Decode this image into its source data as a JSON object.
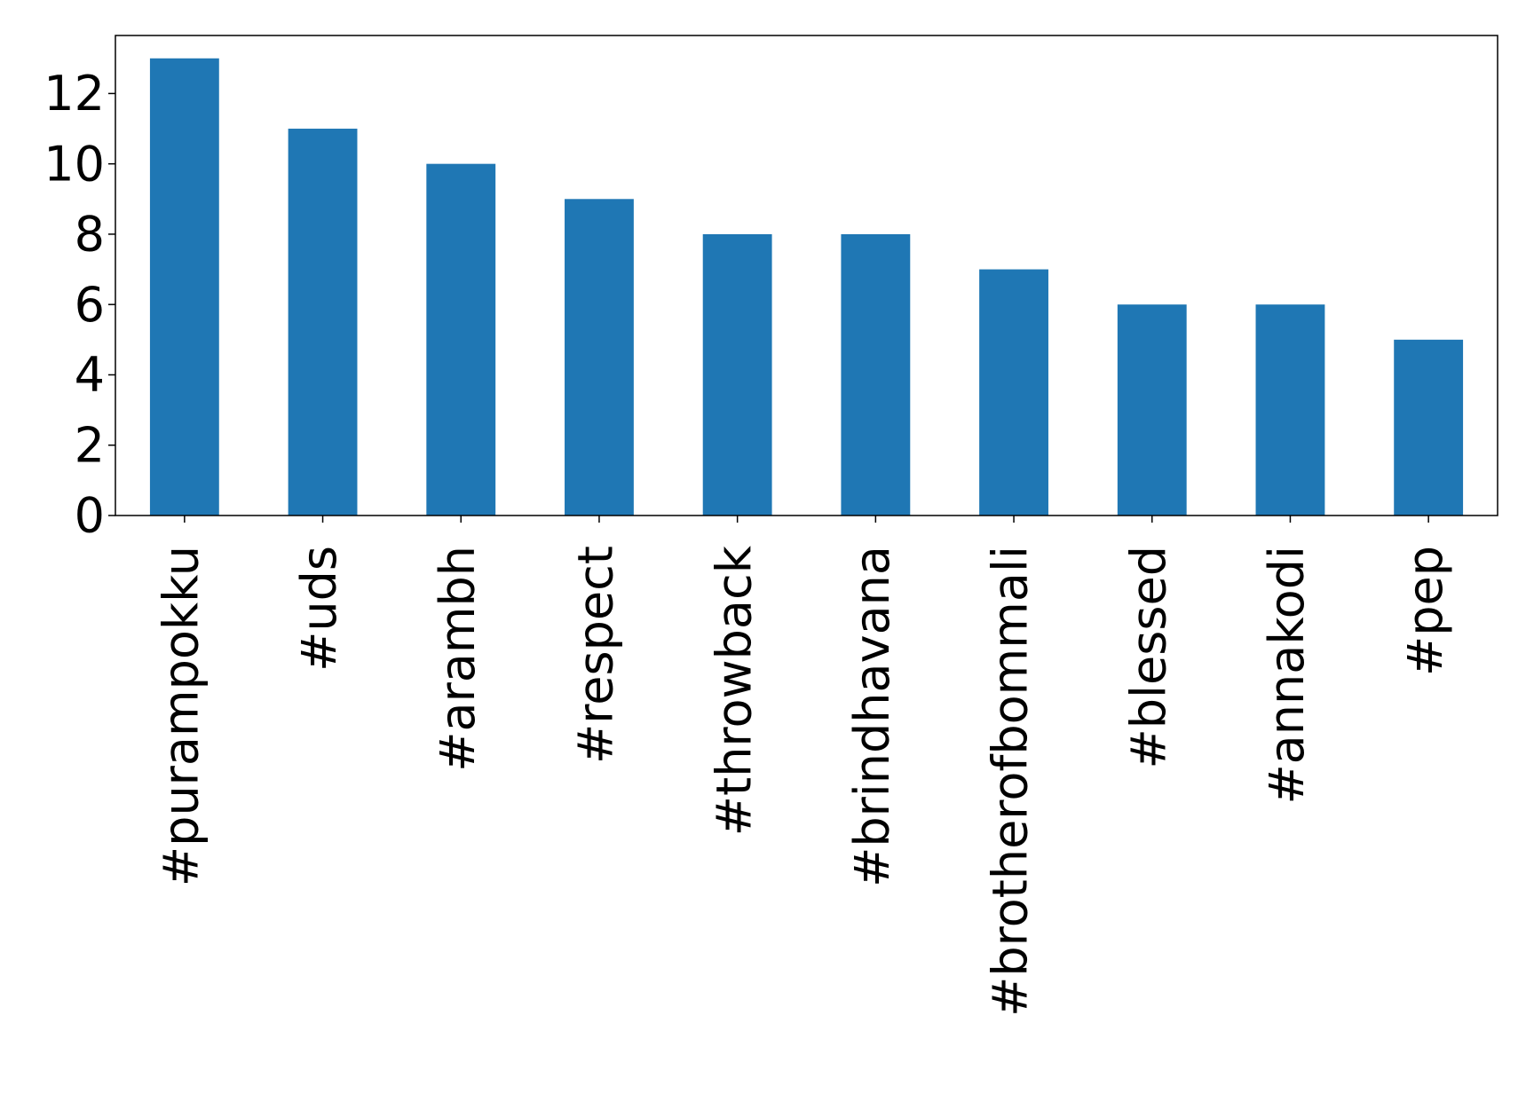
{
  "chart_data": {
    "type": "bar",
    "categories": [
      "#purampokku",
      "#uds",
      "#arambh",
      "#respect",
      "#throwback",
      "#brindhavana",
      "#brotherofbommali",
      "#blessed",
      "#annakodi",
      "#pep"
    ],
    "values": [
      13,
      11,
      10,
      9,
      8,
      8,
      7,
      6,
      6,
      5
    ],
    "color": "#1f77b4",
    "ylim": [
      0,
      13.65
    ],
    "yticks": [
      0,
      2,
      4,
      6,
      8,
      10,
      12
    ],
    "grid": false
  }
}
